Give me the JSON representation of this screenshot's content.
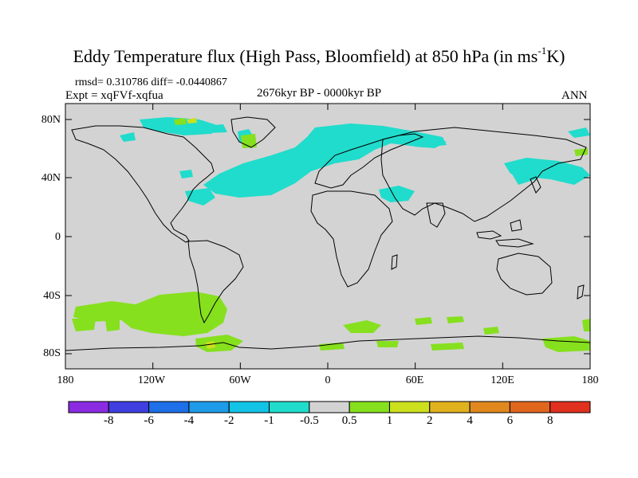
{
  "title": {
    "main": "Eddy Temperature flux (High Pass, Bloomfield) at 850 hPa (in ms",
    "sup": "-1",
    "end": "K)"
  },
  "stats": {
    "rmsd_diff": "rmsd= 0.310786 diff= -0.0440867",
    "expt": "Expt = xqFVf-xqfua",
    "period": "2676kyr BP - 0000kyr BP",
    "season": "ANN"
  },
  "axes": {
    "lat_labels": [
      "80N",
      "40N",
      "0",
      "40S",
      "80S"
    ],
    "lon_labels": [
      "180",
      "120W",
      "60W",
      "0",
      "60E",
      "120E",
      "180"
    ]
  },
  "colorbar": {
    "labels": [
      "-8",
      "-6",
      "-4",
      "-2",
      "-1",
      "-0.5",
      "0.5",
      "1",
      "2",
      "4",
      "6",
      "8"
    ],
    "colors": [
      "#8a2be2",
      "#3f3fe0",
      "#1e6fe8",
      "#1e9be8",
      "#12c3e6",
      "#20dccc",
      "#d3d3d3",
      "#86e01e",
      "#cce01e",
      "#e0b21e",
      "#e0881e",
      "#e0661e",
      "#e0301e"
    ]
  },
  "map": {
    "background": "#d3d3d3",
    "negative_color": "#20dccc",
    "positive_color": "#86e01e",
    "yellow_color": "#cce01e"
  }
}
